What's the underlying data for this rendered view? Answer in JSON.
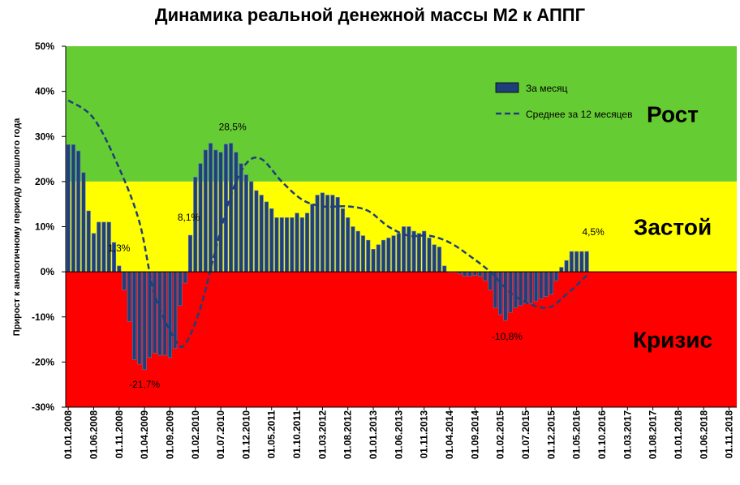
{
  "chart_data": {
    "type": "bar",
    "title": "Динамика реальной денежной массы М2 к АППГ",
    "ylabel": "Прирост к аналогичному периоду прошлого года",
    "ylim": [
      -30,
      50
    ],
    "y_ticks": [
      "-30%",
      "-20%",
      "-10%",
      "0%",
      "10%",
      "20%",
      "30%",
      "40%",
      "50%"
    ],
    "y_tick_values": [
      -30,
      -20,
      -10,
      0,
      10,
      20,
      30,
      40,
      50
    ],
    "x_ticks": [
      "01.01.2008",
      "01.06.2008",
      "01.11.2008",
      "01.04.2009",
      "01.09.2009",
      "01.02.2010",
      "01.07.2010",
      "01.12.2010",
      "01.05.2011",
      "01.10.2011",
      "01.03.2012",
      "01.08.2012",
      "01.01.2013",
      "01.06.2013",
      "01.11.2013",
      "01.04.2014",
      "01.09.2014",
      "01.02.2015",
      "01.07.2015",
      "01.12.2015",
      "01.05.2016",
      "01.10.2016",
      "01.03.2017",
      "01.08.2017",
      "01.01.2018",
      "01.06.2018",
      "01.11.2018"
    ],
    "zones": [
      {
        "label": "Рост",
        "from": 20,
        "to": 50,
        "color": "#66cc33"
      },
      {
        "label": "Застой",
        "from": 0,
        "to": 20,
        "color": "#ffff00"
      },
      {
        "label": "Кризис",
        "from": -30,
        "to": 0,
        "color": "#ff0000"
      }
    ],
    "series": [
      {
        "name": "За месяц",
        "kind": "bar",
        "color": "#1f3f7a",
        "values": [
          28.2,
          28.2,
          26.8,
          22.0,
          13.5,
          8.5,
          11.0,
          11.0,
          11.0,
          6.5,
          1.3,
          -4.0,
          -11.0,
          -19.5,
          -20.5,
          -21.7,
          -19.0,
          -18.0,
          -18.5,
          -18.5,
          -19.0,
          -17.0,
          -7.5,
          -2.5,
          8.1,
          21.0,
          24.0,
          27.0,
          28.5,
          27.0,
          26.5,
          28.3,
          28.5,
          26.5,
          24.0,
          21.5,
          20.0,
          18.0,
          17.0,
          15.5,
          14.0,
          12.0,
          12.0,
          12.0,
          12.0,
          13.0,
          12.0,
          13.0,
          15.0,
          17.0,
          17.5,
          17.0,
          17.0,
          16.5,
          14.0,
          12.0,
          10.0,
          9.0,
          8.0,
          7.0,
          5.0,
          6.0,
          7.0,
          7.5,
          8.0,
          8.5,
          10.0,
          10.0,
          9.0,
          8.5,
          9.0,
          7.5,
          6.0,
          5.5,
          1.3,
          0.0,
          0.0,
          -0.5,
          -1.0,
          -1.0,
          -0.8,
          -1.0,
          -2.0,
          -4.0,
          -8.0,
          -9.5,
          -10.8,
          -9.0,
          -8.0,
          -7.5,
          -7.0,
          -7.0,
          -6.5,
          -6.0,
          -5.5,
          -5.0,
          -2.0,
          1.0,
          2.5,
          4.5,
          4.5,
          4.5,
          4.5
        ],
        "point_labels": [
          {
            "index": 10,
            "text": "1,3%"
          },
          {
            "index": 15,
            "text": "-21,7%"
          },
          {
            "index": 24,
            "text": "8,1%"
          },
          {
            "index": 32,
            "text": "28,5%"
          },
          {
            "index": 86,
            "text": "-10,8%"
          },
          {
            "index": 102,
            "text": "4,5%"
          }
        ]
      },
      {
        "name": "Среднее за 12 месяцев",
        "kind": "line",
        "color": "#1f3f7a",
        "points": [
          [
            0,
            38.0
          ],
          [
            5,
            34.0
          ],
          [
            10,
            23.0
          ],
          [
            14,
            11.0
          ],
          [
            17,
            -5.0
          ],
          [
            21,
            -15.0
          ],
          [
            23,
            -16.0
          ],
          [
            26,
            -8.0
          ],
          [
            29,
            5.0
          ],
          [
            32,
            17.0
          ],
          [
            35,
            24.0
          ],
          [
            38,
            25.0
          ],
          [
            42,
            20.0
          ],
          [
            46,
            16.0
          ],
          [
            50,
            14.5
          ],
          [
            55,
            14.5
          ],
          [
            59,
            13.5
          ],
          [
            63,
            10.0
          ],
          [
            67,
            8.0
          ],
          [
            71,
            8.0
          ],
          [
            75,
            6.5
          ],
          [
            79,
            3.5
          ],
          [
            83,
            0.0
          ],
          [
            88,
            -5.5
          ],
          [
            94,
            -8.0
          ],
          [
            98,
            -5.0
          ],
          [
            102,
            -0.8
          ]
        ]
      }
    ],
    "legend_position": "top-right"
  }
}
